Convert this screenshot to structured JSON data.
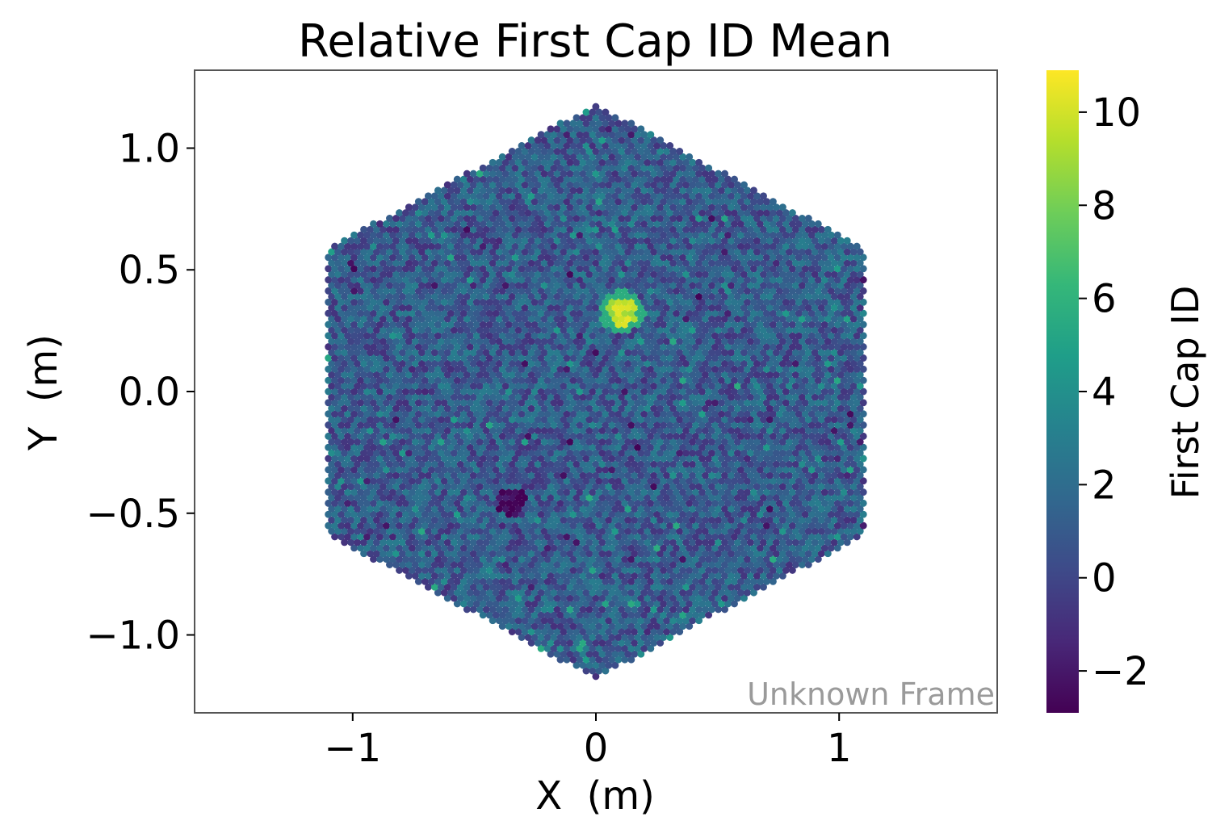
{
  "chart_data": {
    "type": "heatmap",
    "subtype": "hexagonal camera pixel map",
    "title": "Relative First Cap ID Mean",
    "xlabel": "X  (m)",
    "ylabel": "Y  (m)",
    "xlim": [
      -1.65,
      1.65
    ],
    "ylim": [
      -1.32,
      1.32
    ],
    "xticks": [
      -1,
      0,
      1
    ],
    "xtick_labels": [
      "−1",
      "0",
      "1"
    ],
    "yticks": [
      -1.0,
      -0.5,
      0.0,
      0.5,
      1.0
    ],
    "ytick_labels": [
      "−1.0",
      "−0.5",
      "0.0",
      "0.5",
      "1.0"
    ],
    "grid": false,
    "colormap": "viridis",
    "colorbar": {
      "label": "First Cap ID",
      "range": [
        -2.9,
        10.9
      ],
      "ticks": [
        -2,
        0,
        2,
        4,
        6,
        8,
        10
      ],
      "tick_labels": [
        "−2",
        "0",
        "2",
        "4",
        "6",
        "8",
        "10"
      ]
    },
    "camera_extent_m": {
      "x": [
        -1.1,
        1.1
      ],
      "y": [
        -1.18,
        1.18
      ]
    },
    "pixel_pitch_m": 0.0265,
    "baseline_value_range": [
      -1,
      3
    ],
    "hotspots": [
      {
        "x": 0.11,
        "y": 0.33,
        "value": 9.5,
        "note": "bright yellow-green cluster"
      },
      {
        "x": -0.35,
        "y": -0.45,
        "value": -2.7,
        "note": "darkest purple pixels"
      }
    ],
    "annotation": "Unknown Frame"
  }
}
